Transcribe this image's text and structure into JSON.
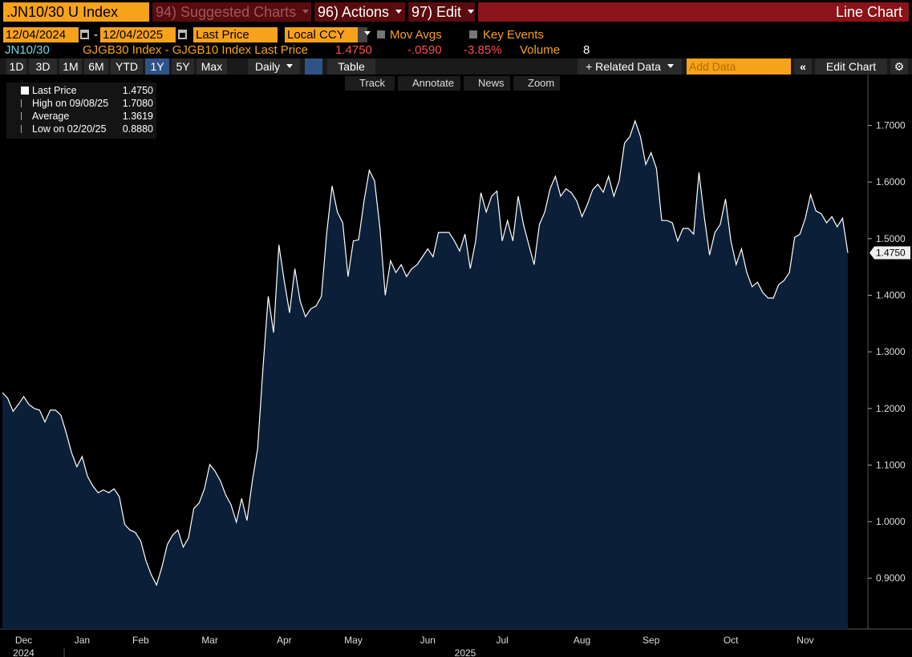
{
  "header": {
    "ticker": ".JN10/30 U Index",
    "menus": [
      "94) Suggested Charts",
      "96) Actions",
      "97) Edit"
    ],
    "view": "Line Chart"
  },
  "controls": {
    "start_date": "12/04/2024",
    "separator": "-",
    "end_date": "12/04/2025",
    "field": "Last Price",
    "currency": "Local CCY",
    "checkboxes": [
      "Mov Avgs",
      "Key Events"
    ]
  },
  "quote": {
    "security": "JN10/30",
    "description": "GJGB30 Index - GJGB10 Index Last Price",
    "last": "1.4750",
    "change": "-.0590",
    "pct_change": "-3.85%",
    "volume_label": "Volume",
    "volume": "8"
  },
  "toolbar": {
    "ranges": [
      "1D",
      "3D",
      "1M",
      "6M",
      "YTD",
      "1Y",
      "5Y",
      "Max"
    ],
    "selected_range": 5,
    "frequency": "Daily",
    "table": "Table",
    "related": "+ Related Data",
    "add_data": "Add Data",
    "edit_chart": "Edit Chart"
  },
  "chart_tools": [
    "Track",
    "Annotate",
    "News",
    "Zoom"
  ],
  "legend": {
    "stats": [
      {
        "label": "Last Price",
        "value": "1.4750"
      },
      {
        "label": "High on 09/08/25",
        "value": "1.7080"
      },
      {
        "label": "Average",
        "value": "1.3619"
      },
      {
        "label": "Low on 02/20/25",
        "value": "0.8880"
      }
    ]
  },
  "chart_data": {
    "type": "line",
    "color": "#ffffff",
    "fill": "#0b1f38",
    "grid": false,
    "categories": [
      null,
      null,
      null,
      null,
      "Dec",
      null,
      null,
      null,
      null,
      null,
      null,
      null,
      null,
      null,
      null,
      "Jan",
      null,
      null,
      null,
      null,
      null,
      null,
      null,
      null,
      null,
      null,
      "Feb",
      null,
      null,
      null,
      null,
      null,
      null,
      null,
      null,
      null,
      null,
      null,
      null,
      "Mar",
      null,
      null,
      null,
      null,
      null,
      null,
      null,
      null,
      null,
      null,
      null,
      null,
      null,
      "Apr",
      null,
      null,
      null,
      null,
      null,
      null,
      null,
      null,
      null,
      null,
      null,
      null,
      "May",
      null,
      null,
      null,
      null,
      null,
      null,
      null,
      null,
      null,
      null,
      null,
      null,
      null,
      "Jun",
      null,
      null,
      null,
      null,
      null,
      null,
      null,
      null,
      null,
      null,
      null,
      null,
      null,
      "Jul",
      null,
      null,
      null,
      null,
      null,
      null,
      null,
      null,
      null,
      null,
      null,
      null,
      null,
      null,
      "Aug",
      null,
      null,
      null,
      null,
      null,
      null,
      null,
      null,
      null,
      null,
      null,
      null,
      "Sep",
      null,
      null,
      null,
      null,
      null,
      null,
      null,
      null,
      null,
      null,
      null,
      null,
      null,
      null,
      "Oct",
      null,
      null,
      null,
      null,
      null,
      null,
      null,
      null,
      null,
      null,
      null,
      null,
      null,
      "Nov",
      null,
      null,
      null,
      null,
      null,
      null,
      null,
      null
    ],
    "values": [
      1.228,
      1.218,
      1.195,
      1.207,
      1.221,
      1.207,
      1.2,
      1.197,
      1.176,
      1.197,
      1.197,
      1.188,
      1.157,
      1.122,
      1.097,
      1.115,
      1.08,
      1.063,
      1.051,
      1.056,
      1.051,
      1.058,
      1.044,
      0.995,
      0.985,
      0.981,
      0.966,
      0.931,
      0.906,
      0.888,
      0.92,
      0.959,
      0.976,
      0.985,
      0.955,
      0.971,
      1.023,
      1.033,
      1.058,
      1.101,
      1.089,
      1.072,
      1.047,
      1.03,
      0.999,
      1.041,
      1.002,
      1.072,
      1.129,
      1.27,
      1.398,
      1.334,
      1.489,
      1.426,
      1.369,
      1.447,
      1.39,
      1.362,
      1.376,
      1.381,
      1.398,
      1.511,
      1.593,
      1.547,
      1.528,
      1.433,
      1.496,
      1.498,
      1.566,
      1.621,
      1.602,
      1.518,
      1.4,
      1.461,
      1.44,
      1.454,
      1.433,
      1.447,
      1.454,
      1.468,
      1.482,
      1.468,
      1.511,
      1.511,
      1.511,
      1.496,
      1.478,
      1.508,
      1.447,
      1.496,
      1.581,
      1.547,
      1.575,
      1.584,
      1.496,
      1.532,
      1.496,
      1.575,
      1.525,
      1.489,
      1.454,
      1.525,
      1.547,
      1.588,
      1.61,
      1.575,
      1.588,
      1.581,
      1.567,
      1.539,
      1.56,
      1.586,
      1.596,
      1.582,
      1.61,
      1.575,
      1.603,
      1.669,
      1.68,
      1.708,
      1.68,
      1.631,
      1.652,
      1.624,
      1.532,
      1.532,
      1.528,
      1.496,
      1.518,
      1.518,
      1.508,
      1.617,
      1.539,
      1.471,
      1.511,
      1.525,
      1.57,
      1.496,
      1.454,
      1.482,
      1.44,
      1.415,
      1.423,
      1.405,
      1.395,
      1.395,
      1.419,
      1.426,
      1.44,
      1.502,
      1.508,
      1.536,
      1.578,
      1.549,
      1.544,
      1.528,
      1.539,
      1.521,
      1.536,
      1.475
    ],
    "x_year_labels": [
      "2024",
      "2025"
    ],
    "ylim": [
      0.85,
      1.79
    ],
    "yticks": [
      {
        "value": 0.9,
        "label": "0.9000"
      },
      {
        "value": 1.0,
        "label": "1.0000"
      },
      {
        "value": 1.1,
        "label": "1.1000"
      },
      {
        "value": 1.2,
        "label": "1.2000"
      },
      {
        "value": 1.3,
        "label": "1.3000"
      },
      {
        "value": 1.4,
        "label": "1.4000"
      },
      {
        "value": 1.5,
        "label": "1.5000"
      },
      {
        "value": 1.6,
        "label": "1.6000"
      },
      {
        "value": 1.7,
        "label": "1.7000"
      }
    ]
  }
}
